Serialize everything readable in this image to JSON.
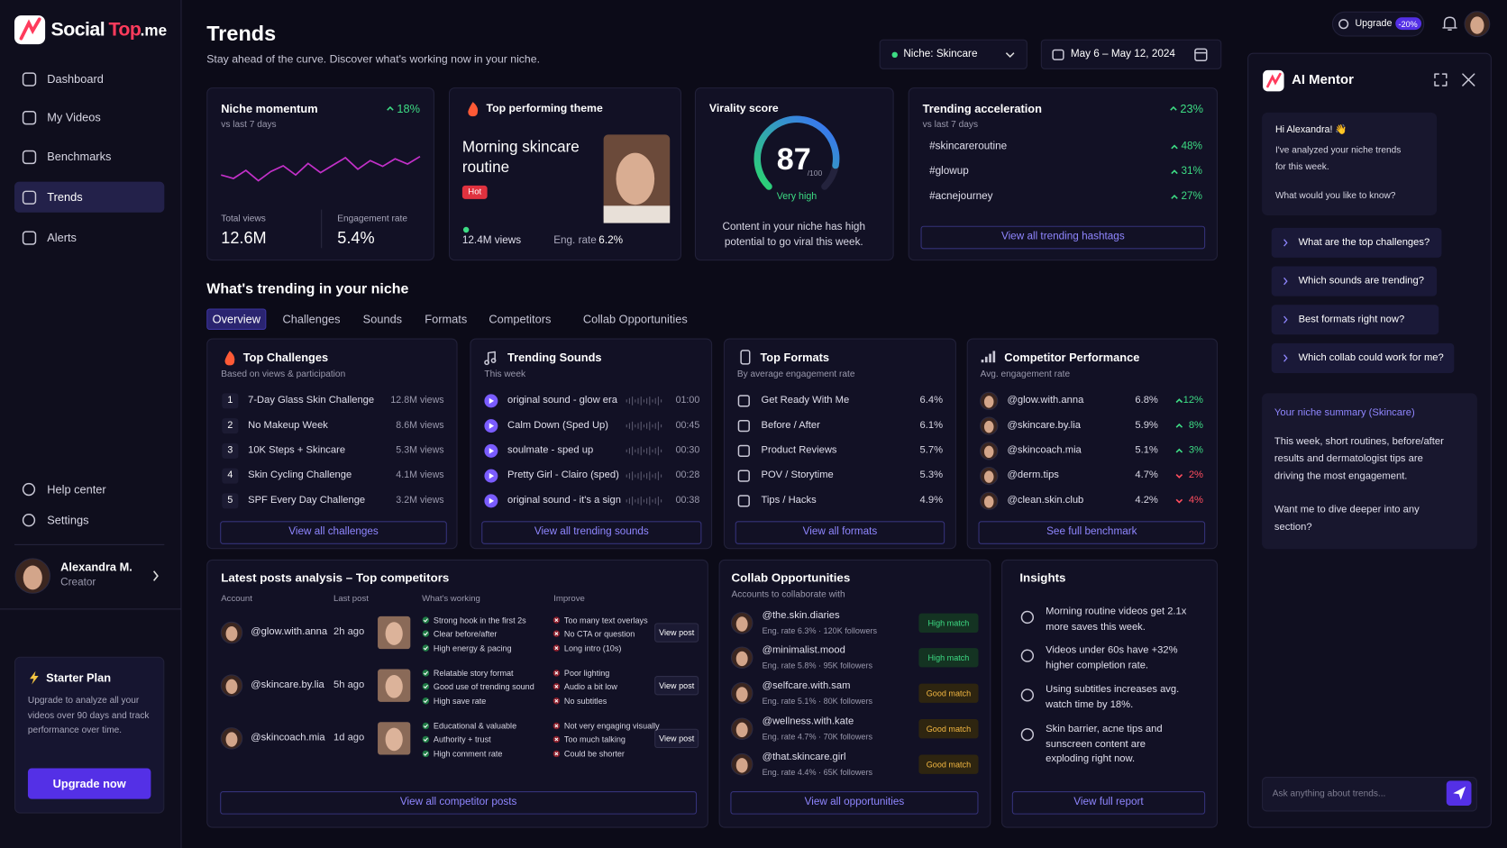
{
  "brand": {
    "a": "Social",
    "b": "Top",
    "c": ".me"
  },
  "nav": [
    "Dashboard",
    "My Videos",
    "Benchmarks",
    "Trends",
    "Alerts"
  ],
  "nav_bottom": [
    "Help center",
    "Settings"
  ],
  "user": {
    "name": "Alexandra M.",
    "role": "Creator"
  },
  "plan": {
    "title": "Starter Plan",
    "text": "Upgrade to analyze all your videos over 90 days and track performance over time.",
    "button": "Upgrade now"
  },
  "header": {
    "title": "Trends",
    "subtitle": "Stay ahead of the curve. Discover what's working now in your niche.",
    "niche": "Niche: Skincare",
    "dates": "May 6 – May 12, 2024",
    "upgrade": "Upgrade",
    "discount": "-20%"
  },
  "cards": {
    "momentum": {
      "title": "Niche momentum",
      "sub": "vs last 7 days",
      "change": "18%",
      "sparkline": [
        30,
        24,
        38,
        20,
        36,
        46,
        30,
        50,
        34,
        47,
        60,
        40,
        55,
        45,
        58,
        49,
        62
      ],
      "stats": [
        {
          "label": "Total views",
          "value": "12.6M"
        },
        {
          "label": "Engagement rate",
          "value": "5.4%"
        }
      ]
    },
    "theme": {
      "title": "Top performing theme",
      "name": "Morning skincare routine",
      "badge": "Hot",
      "views": "12.4M views",
      "eng_label": "Eng. rate",
      "eng": "6.2%"
    },
    "virality": {
      "title": "Virality score",
      "score": 87,
      "max": {
        "value": 100,
        "label": "/100"
      },
      "level": "Very high",
      "text": "Content in your niche has high potential to go viral this week."
    },
    "acceleration": {
      "title": "Trending acceleration",
      "sub": "vs last 7 days",
      "change": "23%",
      "tags": [
        {
          "tag": "#skincareroutine",
          "change": "48%"
        },
        {
          "tag": "#glowup",
          "change": "31%"
        },
        {
          "tag": "#acnejourney",
          "change": "27%"
        }
      ],
      "link": "View all trending hashtags"
    }
  },
  "trending": {
    "title": "What's trending in your niche",
    "tabs": [
      "Overview",
      "Challenges",
      "Sounds",
      "Formats",
      "Competitors",
      "Collab Opportunities"
    ]
  },
  "challenges": {
    "title": "Top Challenges",
    "sub": "Based on views & participation",
    "rows": [
      [
        "1",
        "7-Day Glass Skin Challenge",
        "12.8M views"
      ],
      [
        "2",
        "No Makeup Week",
        "8.6M views"
      ],
      [
        "3",
        "10K Steps + Skincare",
        "5.3M views"
      ],
      [
        "4",
        "Skin Cycling Challenge",
        "4.1M views"
      ],
      [
        "5",
        "SPF Every Day Challenge",
        "3.2M views"
      ]
    ],
    "link": "View all challenges"
  },
  "sounds": {
    "title": "Trending Sounds",
    "sub": "This week",
    "rows": [
      [
        "original sound - glow era",
        "01:00"
      ],
      [
        "Calm Down (Sped Up)",
        "00:45"
      ],
      [
        "soulmate - sped up",
        "00:30"
      ],
      [
        "Pretty Girl - Clairo (sped)",
        "00:28"
      ],
      [
        "original sound - it's a sign",
        "00:38"
      ]
    ],
    "link": "View all trending sounds"
  },
  "formats": {
    "title": "Top Formats",
    "sub": "By average engagement rate",
    "rows": [
      [
        "Get Ready With Me",
        "6.4%"
      ],
      [
        "Before / After",
        "6.1%"
      ],
      [
        "Product Reviews",
        "5.7%"
      ],
      [
        "POV / Storytime",
        "5.3%"
      ],
      [
        "Tips / Hacks",
        "4.9%"
      ]
    ],
    "link": "View all formats"
  },
  "competitors": {
    "title": "Competitor Performance",
    "sub": "Avg. engagement rate",
    "rows": [
      {
        "handle": "@glow.with.anna",
        "rate": "6.8%",
        "change": "12%",
        "dir": "up"
      },
      {
        "handle": "@skincare.by.lia",
        "rate": "5.9%",
        "change": "8%",
        "dir": "up"
      },
      {
        "handle": "@skincoach.mia",
        "rate": "5.1%",
        "change": "3%",
        "dir": "up"
      },
      {
        "handle": "@derm.tips",
        "rate": "4.7%",
        "change": "2%",
        "dir": "down"
      },
      {
        "handle": "@clean.skin.club",
        "rate": "4.2%",
        "change": "4%",
        "dir": "down"
      }
    ],
    "link": "See full benchmark"
  },
  "posts": {
    "title": "Latest posts analysis – Top competitors",
    "columns": [
      "Account",
      "Last post",
      "What's working",
      "Improve"
    ],
    "rows": [
      {
        "account": "@glow.with.anna",
        "time": "2h ago",
        "working": [
          "Strong hook in the first 2s",
          "Clear before/after",
          "High energy & pacing"
        ],
        "improve": [
          "Too many text overlays",
          "No CTA or question",
          "Long intro (10s)"
        ],
        "action": "View post"
      },
      {
        "account": "@skincare.by.lia",
        "time": "5h ago",
        "working": [
          "Relatable story format",
          "Good use of trending sound",
          "High save rate"
        ],
        "improve": [
          "Poor lighting",
          "Audio a bit low",
          "No subtitles"
        ],
        "action": "View post"
      },
      {
        "account": "@skincoach.mia",
        "time": "1d ago",
        "working": [
          "Educational & valuable",
          "Authority + trust",
          "High comment rate"
        ],
        "improve": [
          "Not very engaging visually",
          "Too much talking",
          "Could be shorter"
        ],
        "action": "View post"
      }
    ],
    "link": "View all competitor posts"
  },
  "collab": {
    "title": "Collab Opportunities",
    "sub": "Accounts to collaborate with",
    "rows": [
      {
        "handle": "@the.skin.diaries",
        "stats": "Eng. rate 6.3% · 120K followers",
        "match": "High match",
        "level": "high"
      },
      {
        "handle": "@minimalist.mood",
        "stats": "Eng. rate 5.8% · 95K followers",
        "match": "High match",
        "level": "high"
      },
      {
        "handle": "@selfcare.with.sam",
        "stats": "Eng. rate 5.1% · 80K followers",
        "match": "Good match",
        "level": "good"
      },
      {
        "handle": "@wellness.with.kate",
        "stats": "Eng. rate 4.7% · 70K followers",
        "match": "Good match",
        "level": "good"
      },
      {
        "handle": "@that.skincare.girl",
        "stats": "Eng. rate 4.4% · 65K followers",
        "match": "Good match",
        "level": "good"
      }
    ],
    "link": "View all opportunities"
  },
  "insights": {
    "title": "Insights",
    "items": [
      "Morning routine videos get 2.1x more saves this week.",
      "Videos under 60s have +32% higher completion rate.",
      "Using subtitles increases avg. watch time by 18%.",
      "Skin barrier, acne tips and sunscreen content are exploding right now."
    ],
    "link": "View full report"
  },
  "mentor": {
    "title": "AI Mentor",
    "greeting": "Hi Alexandra! 👋",
    "intro": "I've analyzed your niche trends for this week.",
    "question": "What would you like to know?",
    "prompts": [
      "What are the top challenges?",
      "Which sounds are trending?",
      "Best formats right now?",
      "Which collab could work for me?"
    ],
    "summary_title": "Your niche summary (Skincare)",
    "summary": "This week, short routines, before/after results and dermatologist tips are driving the most engagement.",
    "followup": "Want me to dive deeper into any section?",
    "placeholder": "Ask anything about trends..."
  }
}
